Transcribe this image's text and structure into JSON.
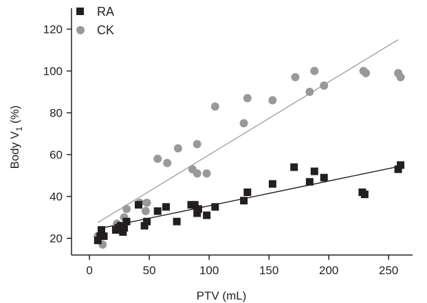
{
  "chart_data": {
    "type": "scatter",
    "xlabel": "PTV (mL)",
    "ylabel": {
      "pre": "Body V",
      "sub": "1",
      "post": " (%)"
    },
    "xlim": [
      -15,
      270
    ],
    "ylim": [
      12,
      130
    ],
    "xticks": [
      0,
      50,
      100,
      150,
      200,
      250
    ],
    "yticks": [
      20,
      40,
      60,
      80,
      100,
      120
    ],
    "grid": false,
    "legend_position": "top-left",
    "series": [
      {
        "name": "RA",
        "marker": "square",
        "color": "#231f20",
        "points": [
          [
            7,
            19
          ],
          [
            9,
            21
          ],
          [
            10,
            24
          ],
          [
            12,
            21
          ],
          [
            22,
            24
          ],
          [
            24,
            25
          ],
          [
            26,
            26
          ],
          [
            28,
            23
          ],
          [
            29,
            25
          ],
          [
            31,
            28
          ],
          [
            41,
            36
          ],
          [
            46,
            26
          ],
          [
            48,
            28
          ],
          [
            57,
            33
          ],
          [
            64,
            35
          ],
          [
            73,
            28
          ],
          [
            85,
            36
          ],
          [
            88,
            36
          ],
          [
            90,
            32
          ],
          [
            91,
            34
          ],
          [
            98,
            31
          ],
          [
            105,
            35
          ],
          [
            129,
            38
          ],
          [
            132,
            42
          ],
          [
            153,
            46
          ],
          [
            171,
            54
          ],
          [
            184,
            47
          ],
          [
            188,
            52
          ],
          [
            196,
            49
          ],
          [
            228,
            42
          ],
          [
            230,
            41
          ],
          [
            258,
            53
          ],
          [
            260,
            55
          ]
        ],
        "trend": [
          [
            7,
            24.5
          ],
          [
            260,
            54.5
          ]
        ]
      },
      {
        "name": "CK",
        "marker": "circle",
        "color": "#999999",
        "points": [
          [
            7,
            21
          ],
          [
            11,
            17
          ],
          [
            23,
            27
          ],
          [
            27,
            25
          ],
          [
            29,
            30
          ],
          [
            31,
            34
          ],
          [
            42,
            37
          ],
          [
            47,
            33
          ],
          [
            48,
            37
          ],
          [
            57,
            58
          ],
          [
            65,
            56
          ],
          [
            74,
            63
          ],
          [
            86,
            53
          ],
          [
            90,
            65
          ],
          [
            90,
            51
          ],
          [
            98,
            51
          ],
          [
            105,
            83
          ],
          [
            129,
            75
          ],
          [
            132,
            87
          ],
          [
            153,
            86
          ],
          [
            172,
            97
          ],
          [
            184,
            90
          ],
          [
            188,
            100
          ],
          [
            196,
            93
          ],
          [
            229,
            100
          ],
          [
            231,
            99
          ],
          [
            258,
            99
          ],
          [
            260,
            97
          ]
        ],
        "trend": [
          [
            7,
            27.5
          ],
          [
            258,
            115
          ]
        ]
      }
    ]
  }
}
